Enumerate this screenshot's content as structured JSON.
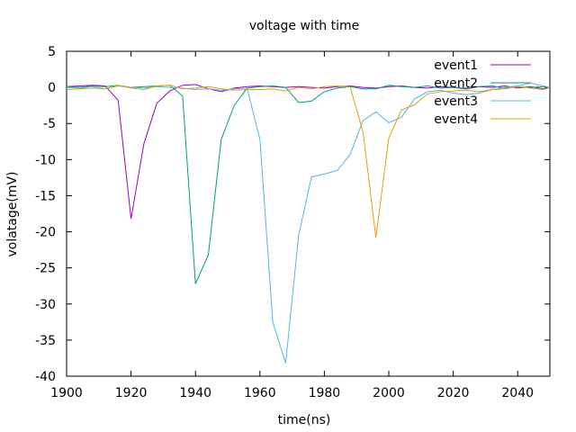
{
  "chart_data": {
    "type": "line",
    "title": "voltage with time",
    "xlabel": "time(ns)",
    "ylabel": "volatage(mV)",
    "xlim": [
      1900,
      2050
    ],
    "ylim": [
      -40,
      5
    ],
    "xticks": [
      1900,
      1920,
      1940,
      1960,
      1980,
      2000,
      2020,
      2040
    ],
    "yticks": [
      5,
      0,
      -5,
      -10,
      -15,
      -20,
      -25,
      -30,
      -35,
      -40
    ],
    "grid": false,
    "legend_position": "top-right",
    "series": [
      {
        "name": "event1",
        "color": "#9400d3",
        "x": [
          1900,
          1904,
          1908,
          1912,
          1916,
          1920,
          1924,
          1928,
          1932,
          1936,
          1940,
          1944,
          1948,
          1952,
          1956,
          1960,
          1964,
          1968,
          1972,
          1976,
          1980,
          1984,
          1988,
          1992,
          1996,
          2000,
          2004,
          2008,
          2012,
          2016,
          2020,
          2024,
          2028,
          2032,
          2036,
          2040,
          2044,
          2048,
          2050
        ],
        "y": [
          0.1,
          0.2,
          0.3,
          0.2,
          -1.8,
          -18.2,
          -7.8,
          -2.2,
          -0.5,
          0.3,
          0.4,
          -0.2,
          -0.6,
          -0.1,
          0.1,
          0.2,
          0.1,
          0,
          0.1,
          0,
          -0.1,
          0.1,
          0.2,
          0,
          -0.1,
          0.1,
          0.2,
          0,
          -0.1,
          0.1,
          0,
          -0.2,
          0.1,
          0,
          0.2,
          -0.1,
          0.1,
          -0.2,
          0
        ]
      },
      {
        "name": "event2",
        "color": "#009e73",
        "x": [
          1900,
          1904,
          1908,
          1912,
          1916,
          1920,
          1924,
          1928,
          1932,
          1936,
          1940,
          1944,
          1948,
          1952,
          1956,
          1960,
          1964,
          1968,
          1972,
          1976,
          1980,
          1984,
          1988,
          1992,
          1996,
          2000,
          2004,
          2008,
          2012,
          2016,
          2020,
          2024,
          2028,
          2032,
          2036,
          2040,
          2044,
          2048,
          2050
        ],
        "y": [
          0.1,
          0,
          0.2,
          0.1,
          0.3,
          0,
          0.1,
          0.2,
          0.3,
          -1.2,
          -27.2,
          -23.2,
          -7.2,
          -2.5,
          -0.1,
          0.1,
          0.2,
          0,
          -2.1,
          -1.9,
          -0.6,
          -0.1,
          0.1,
          -0.2,
          -0.2,
          0.3,
          0.1,
          0,
          0.2,
          -0.1,
          0,
          -0.1,
          0.1,
          0.2,
          -0.1,
          0.1,
          0,
          0.1,
          0
        ]
      },
      {
        "name": "event3",
        "color": "#56b4e9",
        "x": [
          1900,
          1904,
          1908,
          1912,
          1916,
          1920,
          1924,
          1928,
          1932,
          1936,
          1940,
          1944,
          1948,
          1952,
          1956,
          1960,
          1964,
          1968,
          1972,
          1976,
          1980,
          1984,
          1988,
          1992,
          1996,
          2000,
          2004,
          2008,
          2012,
          2016,
          2020,
          2024,
          2028,
          2032,
          2036,
          2040,
          2044,
          2048,
          2050
        ],
        "y": [
          0,
          -0.1,
          0.1,
          -0.2,
          0.2,
          0,
          -0.1,
          0.1,
          0,
          -0.1,
          -0.3,
          -0.2,
          -0.4,
          -0.2,
          -0.1,
          -7.2,
          -32.5,
          -38.2,
          -20.5,
          -12.4,
          -12.0,
          -11.5,
          -9.3,
          -4.6,
          -3.4,
          -4.9,
          -4.1,
          -1.6,
          -0.6,
          -0.4,
          -0.8,
          -1.0,
          -0.8,
          -0.3,
          0,
          0.2,
          0.6,
          0.2,
          0
        ]
      },
      {
        "name": "event4",
        "color": "#e69f00",
        "x": [
          1900,
          1904,
          1908,
          1912,
          1916,
          1920,
          1924,
          1928,
          1932,
          1936,
          1940,
          1944,
          1948,
          1952,
          1956,
          1960,
          1964,
          1968,
          1972,
          1976,
          1980,
          1984,
          1988,
          1992,
          1996,
          2000,
          2004,
          2008,
          2012,
          2016,
          2020,
          2024,
          2028,
          2032,
          2036,
          2040,
          2044,
          2048,
          2050
        ],
        "y": [
          -0.3,
          -0.2,
          -0.1,
          -0.2,
          0.3,
          -0.1,
          -0.3,
          0.2,
          0.3,
          -0.2,
          -0.1,
          0.1,
          -0.2,
          -0.4,
          -0.3,
          -0.3,
          -0.2,
          -0.5,
          0,
          -0.2,
          0.1,
          0.2,
          0.1,
          -6.2,
          -20.8,
          -7.0,
          -3.1,
          -2.4,
          -0.9,
          -0.6,
          -0.5,
          -0.4,
          -0.6,
          -0.3,
          -0.2,
          0.1,
          -0.1,
          -0.3,
          0
        ]
      }
    ]
  }
}
